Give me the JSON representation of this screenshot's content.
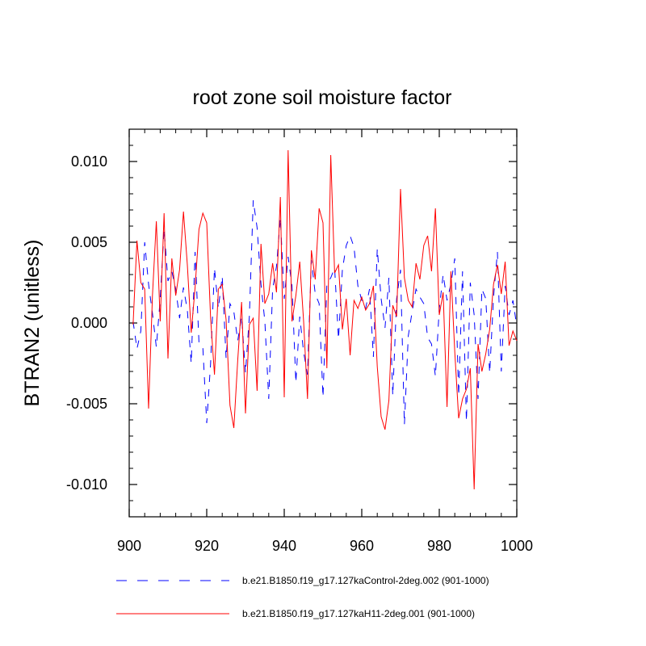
{
  "chart_data": {
    "type": "line",
    "title": "root zone soil moisture factor",
    "xlabel": "",
    "ylabel": "BTRAN2  (unitless)",
    "xlim": [
      900,
      1000
    ],
    "ylim": [
      -0.012,
      0.012
    ],
    "xticks": [
      900,
      920,
      940,
      960,
      980,
      1000
    ],
    "xtick_labels": [
      "900",
      "920",
      "940",
      "960",
      "980",
      "1000"
    ],
    "yticks": [
      -0.01,
      -0.005,
      0.0,
      0.005,
      0.01
    ],
    "ytick_labels": [
      "-0.010",
      "-0.005",
      "0.000",
      "0.005",
      "0.010"
    ],
    "x": [
      901,
      902,
      903,
      904,
      905,
      906,
      907,
      908,
      909,
      910,
      911,
      912,
      913,
      914,
      915,
      916,
      917,
      918,
      919,
      920,
      921,
      922,
      923,
      924,
      925,
      926,
      927,
      928,
      929,
      930,
      931,
      932,
      933,
      934,
      935,
      936,
      937,
      938,
      939,
      940,
      941,
      942,
      943,
      944,
      945,
      946,
      947,
      948,
      949,
      950,
      951,
      952,
      953,
      954,
      955,
      956,
      957,
      958,
      959,
      960,
      961,
      962,
      963,
      964,
      965,
      966,
      967,
      968,
      969,
      970,
      971,
      972,
      973,
      974,
      975,
      976,
      977,
      978,
      979,
      980,
      981,
      982,
      983,
      984,
      985,
      986,
      987,
      988,
      989,
      990,
      991,
      992,
      993,
      994,
      995,
      996,
      997,
      998,
      999,
      1000
    ],
    "series": [
      {
        "name": "b.e21.B1850.f19_g17.127kaControl-2deg.002 (901-1000)",
        "color": "#0000ff",
        "style": "dashed",
        "values": [
          0.0001,
          -0.0016,
          -0.0005,
          0.005,
          0.0024,
          0.0006,
          -0.0015,
          0.0015,
          0.0058,
          0.0026,
          0.0032,
          0.0021,
          0.0003,
          0.0022,
          0.0008,
          -0.0025,
          0.0044,
          -0.0012,
          -0.0015,
          -0.0062,
          -0.0025,
          0.0034,
          0.0009,
          0.0029,
          -0.0022,
          0.0012,
          0.0007,
          -0.0011,
          0.0004,
          -0.0031,
          0.0004,
          0.0076,
          0.0059,
          0.0024,
          0.0001,
          -0.0047,
          0.0021,
          0.0035,
          0.0065,
          0.0015,
          0.0041,
          0.0023,
          -0.0037,
          0.0004,
          -0.0018,
          -0.0032,
          0.0039,
          0.0018,
          0.0012,
          -0.0046,
          0.0024,
          0.0028,
          0.0034,
          -0.001,
          0.0033,
          0.0048,
          0.0054,
          0.0047,
          0.0023,
          0.0014,
          0.0009,
          0.0021,
          -0.0021,
          0.0046,
          0.0015,
          -0.0003,
          0.0028,
          -0.0045,
          0.0015,
          0.0033,
          -0.0063,
          -0.0008,
          0.0007,
          0.0021,
          0.0016,
          0.0012,
          -0.0009,
          -0.0013,
          -0.0033,
          0.0009,
          0.003,
          0.0014,
          0.0024,
          0.004,
          -0.0045,
          0.0032,
          -0.0061,
          0.0025,
          0.0005,
          -0.0047,
          0.0021,
          0.0015,
          -0.0031,
          0.0016,
          0.0044,
          -0.003,
          0.0023,
          0.0005,
          0.0014,
          -0.0002
        ]
      },
      {
        "name": "b.e21.B1850.f19_g17.127kaH11-2deg.001 (901-1000)",
        "color": "#ff0000",
        "style": "solid",
        "values": [
          -0.0001,
          0.0051,
          0.0025,
          0.0021,
          -0.0053,
          0.0017,
          0.0063,
          0.0001,
          0.0068,
          -0.0022,
          0.004,
          0.0017,
          0.0033,
          0.0069,
          0.0036,
          -0.0006,
          0.0022,
          0.0058,
          0.0068,
          0.0062,
          0.0003,
          -0.0032,
          0.0021,
          0.0024,
          0.0002,
          -0.0051,
          -0.0065,
          -0.0023,
          0.0013,
          -0.0056,
          -0.0001,
          0.0003,
          -0.0042,
          0.0049,
          0.0012,
          0.0018,
          0.0037,
          0.0019,
          0.0078,
          -0.0046,
          0.0107,
          0.0001,
          0.0017,
          0.0038,
          0.0001,
          -0.0047,
          0.0045,
          0.0027,
          0.0071,
          0.0062,
          -0.0028,
          0.0104,
          0.0031,
          0.0036,
          -0.0004,
          0.0015,
          -0.002,
          0.0014,
          0.0009,
          0.0016,
          0.0008,
          0.0012,
          0.0023,
          -0.0027,
          -0.0058,
          -0.0066,
          -0.0048,
          0.0011,
          0.0004,
          0.0083,
          0.0028,
          0.0014,
          0.001,
          0.0037,
          0.0027,
          0.0048,
          0.0054,
          0.0032,
          0.0071,
          0.0005,
          0.0019,
          -0.0052,
          0.0032,
          -0.0018,
          -0.0059,
          -0.0047,
          -0.0041,
          -0.0028,
          -0.0103,
          -0.0013,
          -0.003,
          -0.0019,
          -0.0004,
          0.0024,
          0.0036,
          0.0018,
          0.0038,
          -0.0014,
          -0.0005,
          -0.0011
        ]
      }
    ],
    "legend_position": "bottom",
    "grid": false
  }
}
